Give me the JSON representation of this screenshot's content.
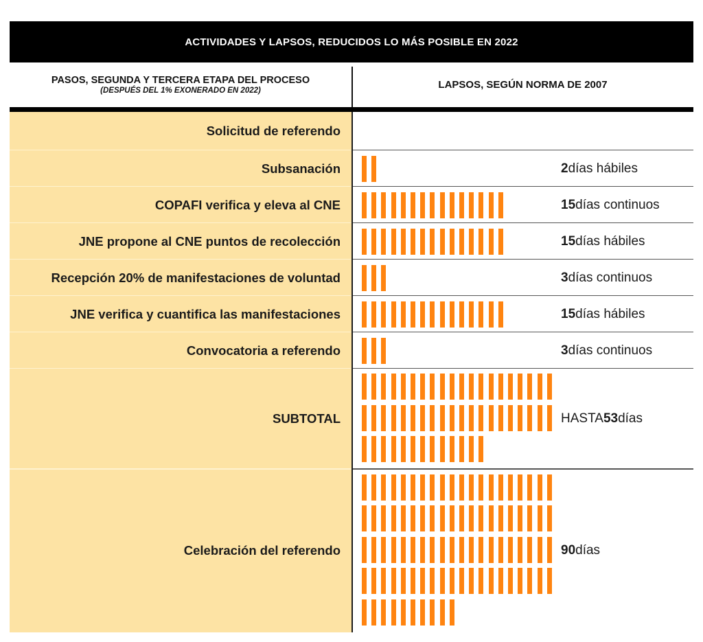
{
  "title": "ACTIVIDADES Y LAPSOS, REDUCIDOS LO MÁS POSIBLE EN 2022",
  "header": {
    "left_title": "PASOS, SEGUNDA Y TERCERA ETAPA DEL PROCESO",
    "left_subtitle": "(DESPUÉS DEL 1% EXONERADO EN 2022)",
    "right_title": "LAPSOS, SEGÚN NORMA DE 2007"
  },
  "colors": {
    "bar": "#ff8410",
    "left_column": "#fde3a4",
    "title_bg": "#000000"
  },
  "chart_data": {
    "type": "table",
    "title": "ACTIVIDADES Y LAPSOS, REDUCIDOS LO MÁS POSIBLE EN 2022",
    "unit": "días (una barra = 1 día)",
    "rows": [
      {
        "step": "Solicitud de referendo",
        "days": 0,
        "prefix": "",
        "number": "",
        "suffix": ""
      },
      {
        "step": "Subsanación",
        "days": 2,
        "prefix": "",
        "number": "2",
        "suffix": " días hábiles"
      },
      {
        "step": "COPAFI verifica y eleva al CNE",
        "days": 15,
        "prefix": "",
        "number": "15",
        "suffix": " días continuos"
      },
      {
        "step": "JNE propone al CNE puntos de recolección",
        "days": 15,
        "prefix": "",
        "number": "15",
        "suffix": " días hábiles"
      },
      {
        "step": "Recepción 20% de manifestaciones de voluntad",
        "days": 3,
        "prefix": "",
        "number": "3",
        "suffix": " días continuos"
      },
      {
        "step": "JNE verifica y cuantifica las manifestaciones",
        "days": 15,
        "prefix": "",
        "number": "15",
        "suffix": " días hábiles"
      },
      {
        "step": "Convocatoria a referendo",
        "days": 3,
        "prefix": "",
        "number": "3",
        "suffix": " días continuos"
      },
      {
        "step": "SUBTOTAL",
        "days": 53,
        "prefix": "HASTA ",
        "number": "53",
        "suffix": " días"
      },
      {
        "step": "Celebración del referendo",
        "days": 90,
        "prefix": "",
        "number": "90",
        "suffix": " días"
      }
    ]
  }
}
